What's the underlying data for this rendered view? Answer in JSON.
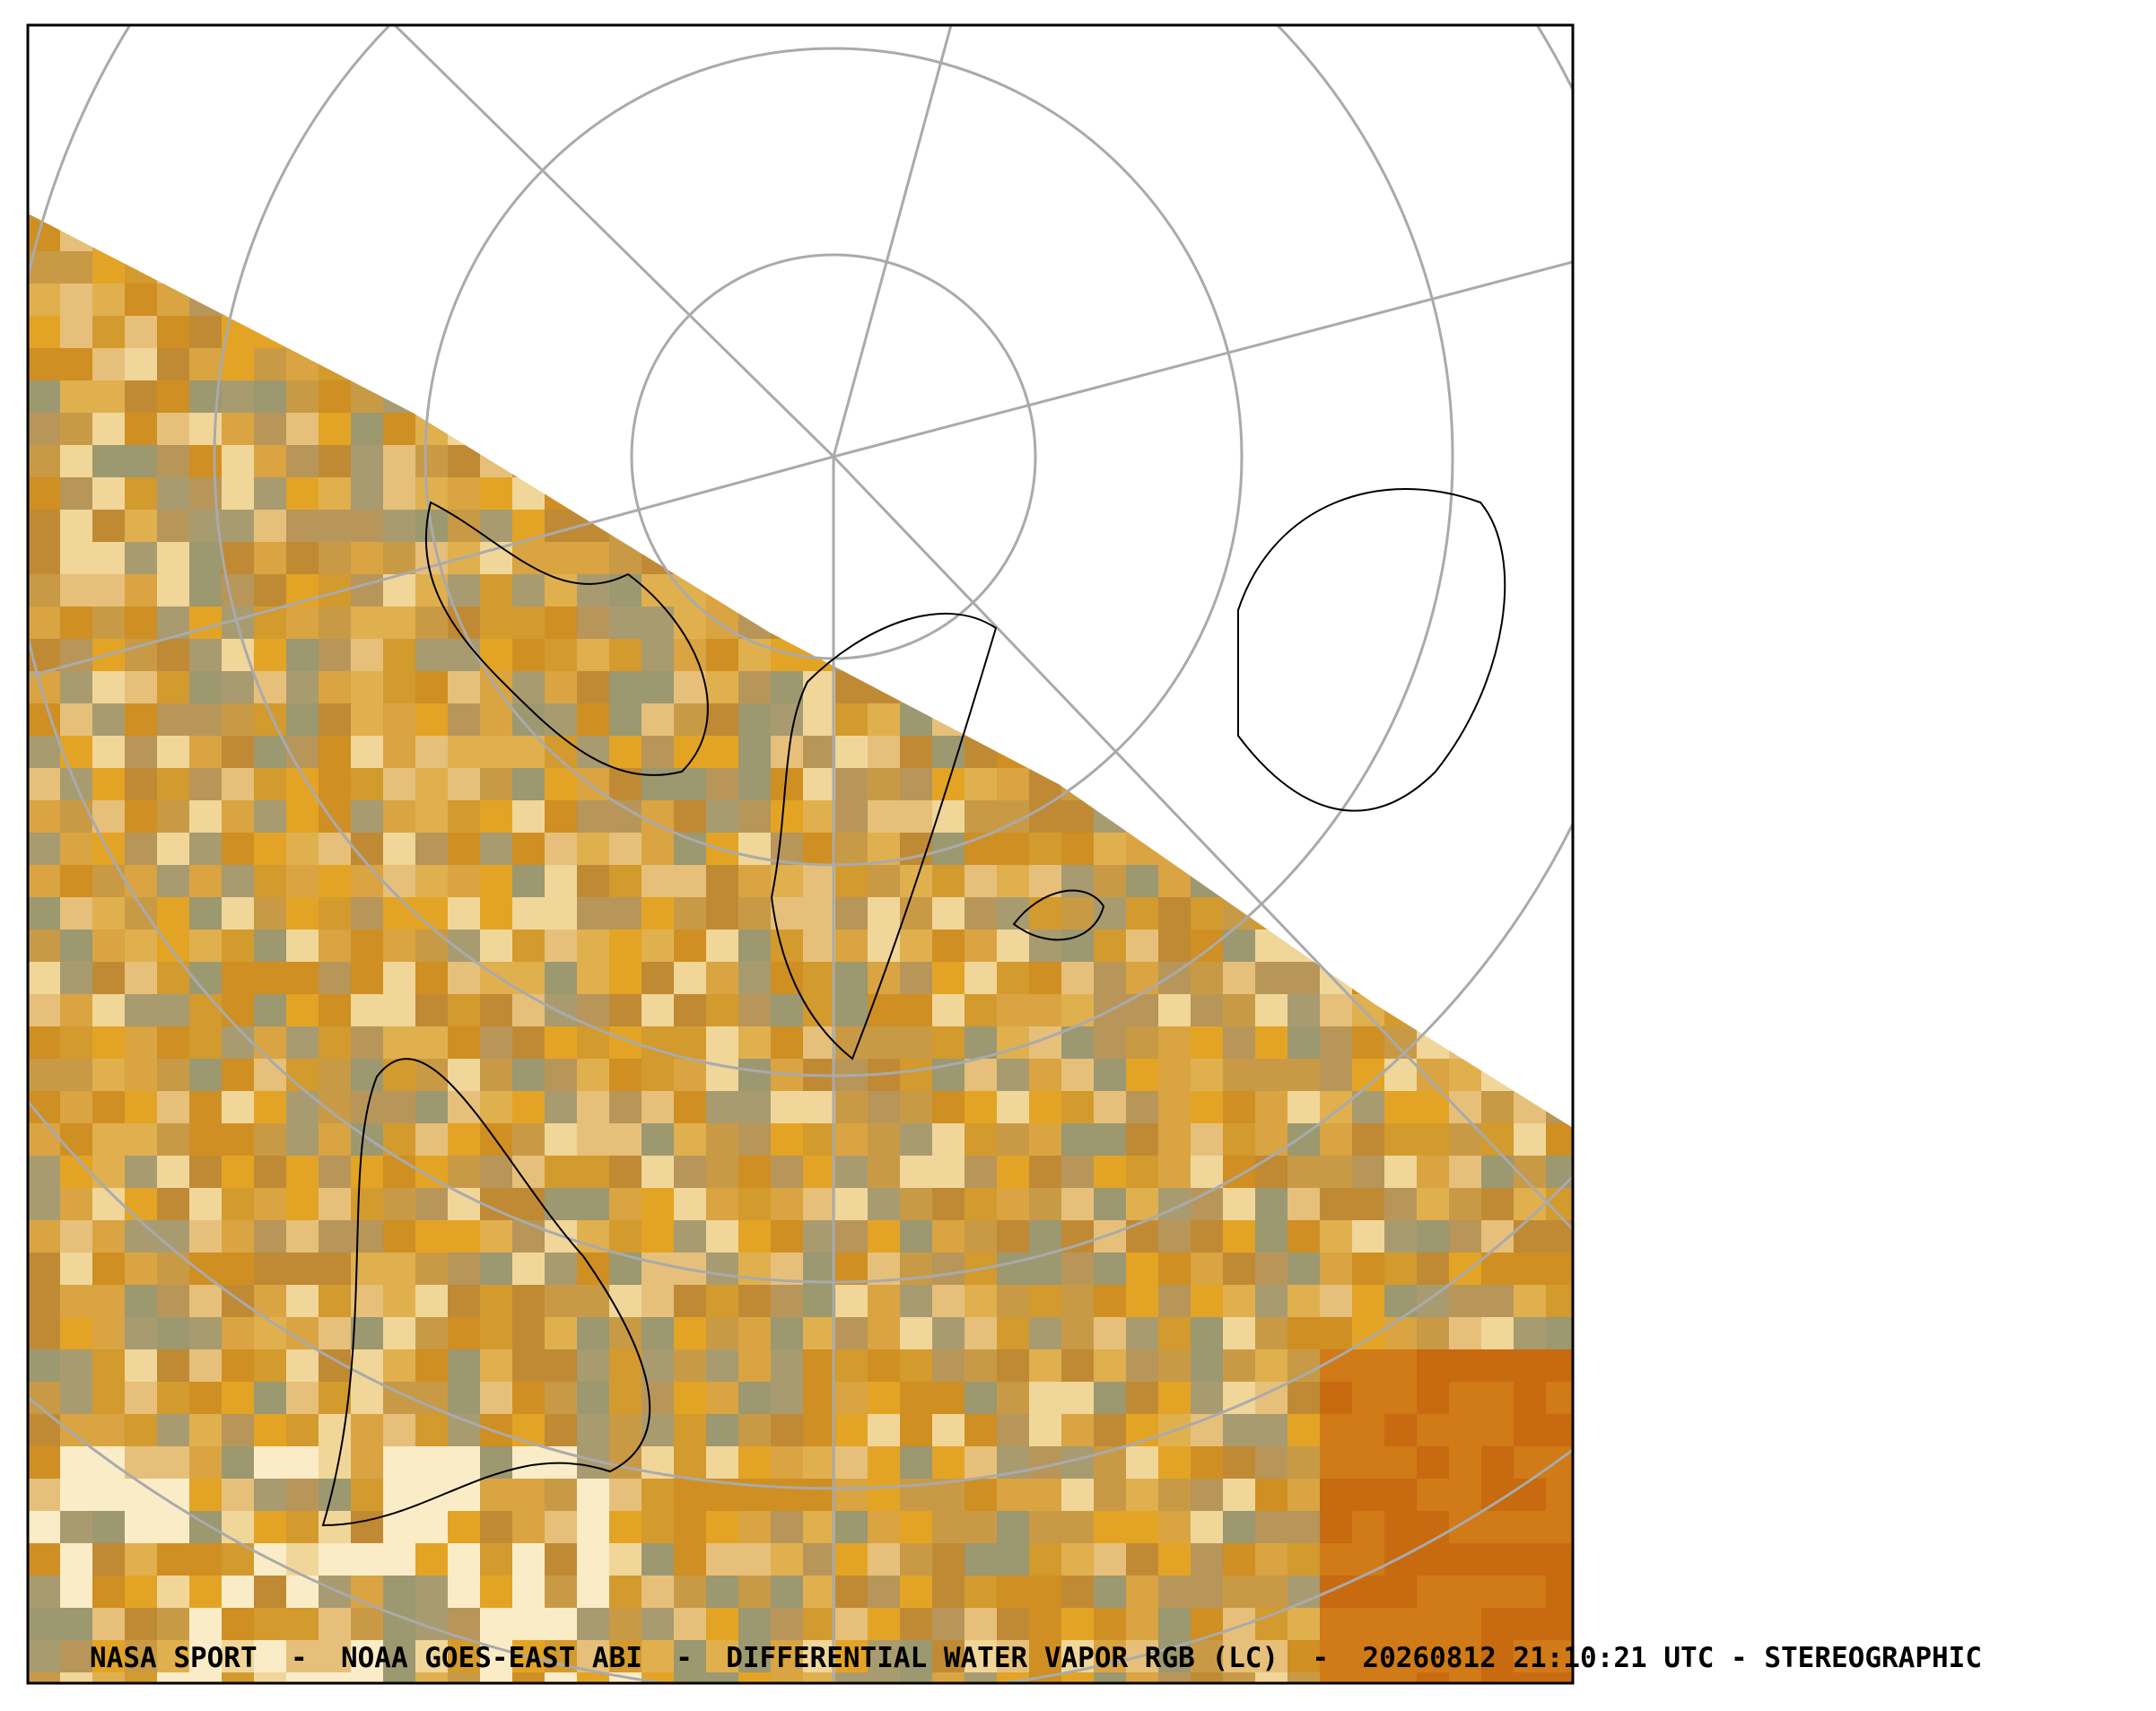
{
  "caption": "NASA SPORT  -  NOAA GOES-EAST ABI  -  DIFFERENTIAL WATER VAPOR RGB (LC)  -  20260812 21:10:21 UTC - STEREOGRAPHIC"
}
